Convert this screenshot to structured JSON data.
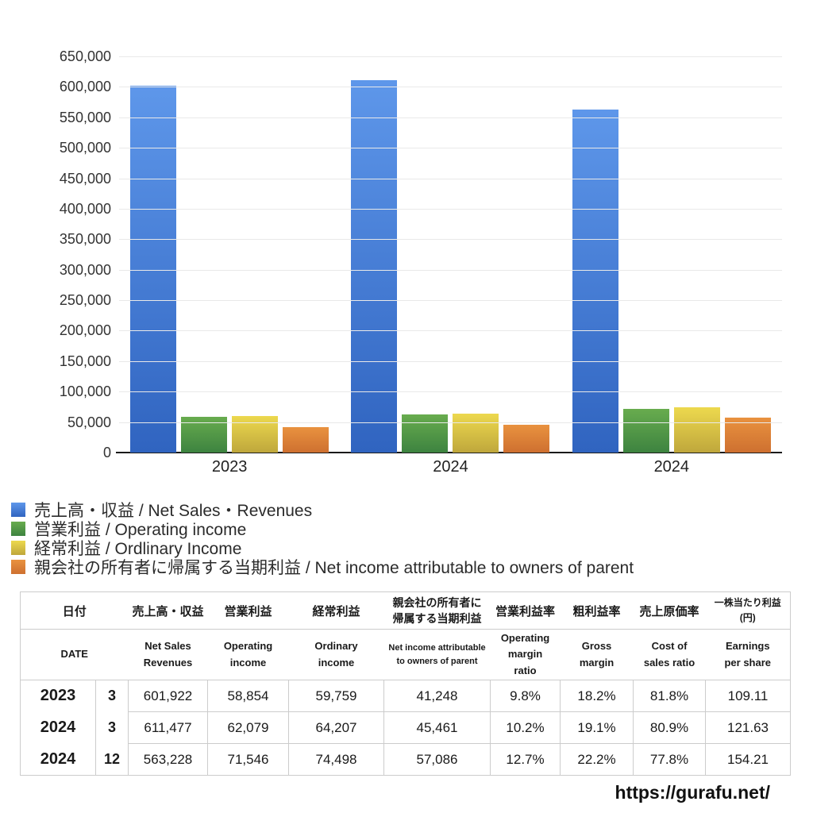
{
  "chart_data": {
    "type": "bar",
    "categories": [
      "2023",
      "2024",
      "2024"
    ],
    "series": [
      {
        "id": "net-sales",
        "name": "売上高・収益 / Net Sales・Revenues",
        "color_top": "#5E97EA",
        "color_bottom": "#3064C0",
        "values": [
          601922,
          611477,
          563228
        ]
      },
      {
        "id": "operating-income",
        "name": "営業利益 / Operating income",
        "color_top": "#68AC4E",
        "color_bottom": "#3D8340",
        "values": [
          58854,
          62079,
          71546
        ]
      },
      {
        "id": "ordinary-income",
        "name": "経常利益 / Ordlinary Income",
        "color_top": "#EDD94E",
        "color_bottom": "#BFA73C",
        "values": [
          59759,
          64207,
          74498
        ]
      },
      {
        "id": "net-income",
        "name": "親会社の所有者に帰属する当期利益 / Net income attributable to owners of parent",
        "color_top": "#E9923F",
        "color_bottom": "#CE7030",
        "values": [
          41248,
          45461,
          57086
        ]
      }
    ],
    "title": "",
    "xlabel": "",
    "ylabel": "",
    "ylim": [
      0,
      650000
    ],
    "ytick_step": 50000,
    "yticks": [
      "650,000",
      "600,000",
      "550,000",
      "500,000",
      "450,000",
      "400,000",
      "350,000",
      "300,000",
      "250,000",
      "200,000",
      "150,000",
      "100,000",
      "50,000",
      "0"
    ],
    "grid": true,
    "legend_position": "bottom-left"
  },
  "table": {
    "header_jp": [
      "日付",
      "売上高・収益",
      "営業利益",
      "経常利益",
      "親会社の所有者に\n帰属する当期利益",
      "営業利益率",
      "粗利益率",
      "売上原価率",
      "一株当たり利益\n(円)"
    ],
    "header_en": [
      "DATE",
      "Net Sales\nRevenues",
      "Operating\nincome",
      "Ordinary\nincome",
      "Net income attributable\nto owners of parent",
      "Operating\nmargin\nratio",
      "Gross\nmargin",
      "Cost of\nsales ratio",
      "Earnings\nper share"
    ],
    "rows": [
      {
        "year": "2023",
        "month": "3",
        "values": [
          "601,922",
          "58,854",
          "59,759",
          "41,248",
          "9.8%",
          "18.2%",
          "81.8%",
          "109.11"
        ]
      },
      {
        "year": "2024",
        "month": "3",
        "values": [
          "611,477",
          "62,079",
          "64,207",
          "45,461",
          "10.2%",
          "19.1%",
          "80.9%",
          "121.63"
        ]
      },
      {
        "year": "2024",
        "month": "12",
        "values": [
          "563,228",
          "71,546",
          "74,498",
          "57,086",
          "12.7%",
          "22.2%",
          "77.8%",
          "154.21"
        ]
      }
    ]
  },
  "footer": {
    "url": "https://gurafu.net/"
  }
}
